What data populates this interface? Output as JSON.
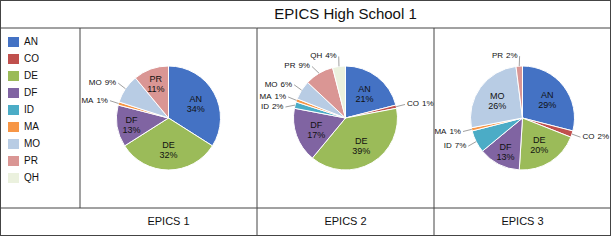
{
  "title": "EPICS High School 1",
  "chart_data": [
    {
      "type": "pie",
      "subtitle": "EPICS 1",
      "categories": [
        "AN",
        "CO",
        "DE",
        "DF",
        "ID",
        "MA",
        "MO",
        "PR",
        "QH"
      ],
      "values": [
        34,
        0,
        32,
        13,
        0,
        1,
        9,
        11,
        0
      ],
      "value_labels": [
        "34%",
        null,
        "32%",
        "13%",
        null,
        "1%",
        "9%",
        "11%",
        null
      ],
      "colors": [
        "#4472C4",
        "#C0504D",
        "#9BBB59",
        "#8064A2",
        "#4BACC6",
        "#F79646",
        "#B8CCE4",
        "#DA9694",
        "#EBF1DE"
      ],
      "data_labels": true,
      "legend": "left"
    },
    {
      "type": "pie",
      "subtitle": "EPICS 2",
      "categories": [
        "AN",
        "CO",
        "DE",
        "DF",
        "ID",
        "MA",
        "MO",
        "PR",
        "QH"
      ],
      "values": [
        21,
        1,
        39,
        17,
        2,
        1,
        6,
        9,
        4
      ],
      "value_labels": [
        "21%",
        "1%",
        "39%",
        "17%",
        "2%",
        "1%",
        "6%",
        "9%",
        "4%"
      ],
      "colors": [
        "#4472C4",
        "#C0504D",
        "#9BBB59",
        "#8064A2",
        "#4BACC6",
        "#F79646",
        "#B8CCE4",
        "#DA9694",
        "#EBF1DE"
      ],
      "data_labels": true
    },
    {
      "type": "pie",
      "subtitle": "EPICS 3",
      "categories": [
        "AN",
        "CO",
        "DE",
        "DF",
        "ID",
        "MA",
        "MO",
        "PR",
        "QH"
      ],
      "values": [
        29,
        2,
        20,
        13,
        7,
        1,
        26,
        2,
        0
      ],
      "value_labels": [
        "29%",
        "2%",
        "20%",
        "13%",
        "7%",
        "1%",
        "26%",
        "2%",
        null
      ],
      "colors": [
        "#4472C4",
        "#C0504D",
        "#9BBB59",
        "#8064A2",
        "#4BACC6",
        "#F79646",
        "#B8CCE4",
        "#DA9694",
        "#EBF1DE"
      ],
      "data_labels": true
    }
  ]
}
